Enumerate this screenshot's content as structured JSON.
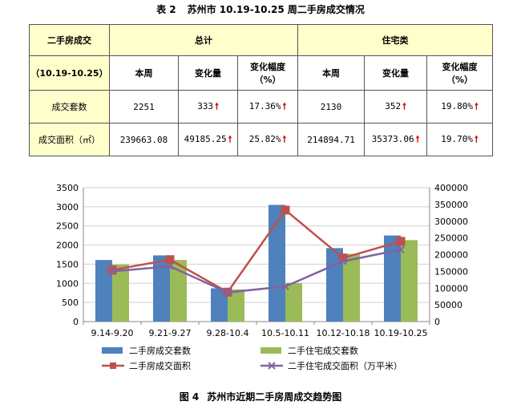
{
  "table": {
    "title_no": "表 2",
    "title_text": "苏州市 10.19-10.25 周二手房成交情况",
    "corner_top": "二手房成交",
    "corner_bottom": "（10.19-10.25）",
    "group_total": "总计",
    "group_residential": "住宅类",
    "col_this_week": "本周",
    "col_change": "变化量",
    "col_rate_line1": "变化幅度",
    "col_rate_line2": "（%）",
    "up_arrow": "🠕",
    "rows": [
      {
        "label": "成交套数",
        "total_week": "2251",
        "total_change": "333",
        "total_rate": "17.36%",
        "res_week": "2130",
        "res_change": "352",
        "res_rate": "19.80%"
      },
      {
        "label": "成交面积（㎡）",
        "total_week": "239663.08",
        "total_change": "49185.25",
        "total_rate": "25.82%",
        "res_week": "214894.71",
        "res_change": "35373.06",
        "res_rate": "19.70%"
      }
    ]
  },
  "chart_caption_no": "图 4",
  "chart_caption_text": "苏州市近期二手房周成交趋势图",
  "chart_data": {
    "type": "bar",
    "categories": [
      "9.14-9.20",
      "9.21-9.27",
      "9.28-10.4",
      "10.5-10.11",
      "10.12-10.18",
      "10.19-10.25"
    ],
    "y_left": {
      "min": 0,
      "max": 3500,
      "step": 500
    },
    "y_right": {
      "min": 0,
      "max": 400000,
      "step": 50000
    },
    "grid": true,
    "legend_position": "bottom",
    "series": [
      {
        "name": "二手房成交套数",
        "type": "bar",
        "axis": "left",
        "color": "#4f81bd",
        "values": [
          1610,
          1730,
          870,
          3050,
          1920,
          2251
        ]
      },
      {
        "name": "二手住宅成交套数",
        "type": "bar",
        "axis": "left",
        "color": "#9bbb59",
        "values": [
          1490,
          1610,
          840,
          1010,
          1770,
          2130
        ]
      },
      {
        "name": "二手房成交面积",
        "type": "line",
        "axis": "right",
        "color": "#c0504d",
        "marker": "square",
        "values": [
          154000,
          185000,
          88000,
          333000,
          190000,
          239663
        ]
      },
      {
        "name": "二手住宅成交面积（万平米）",
        "type": "line",
        "axis": "right",
        "color": "#8064a2",
        "marker": "x",
        "values": [
          150000,
          165000,
          87000,
          105000,
          180000,
          214895
        ]
      }
    ]
  }
}
